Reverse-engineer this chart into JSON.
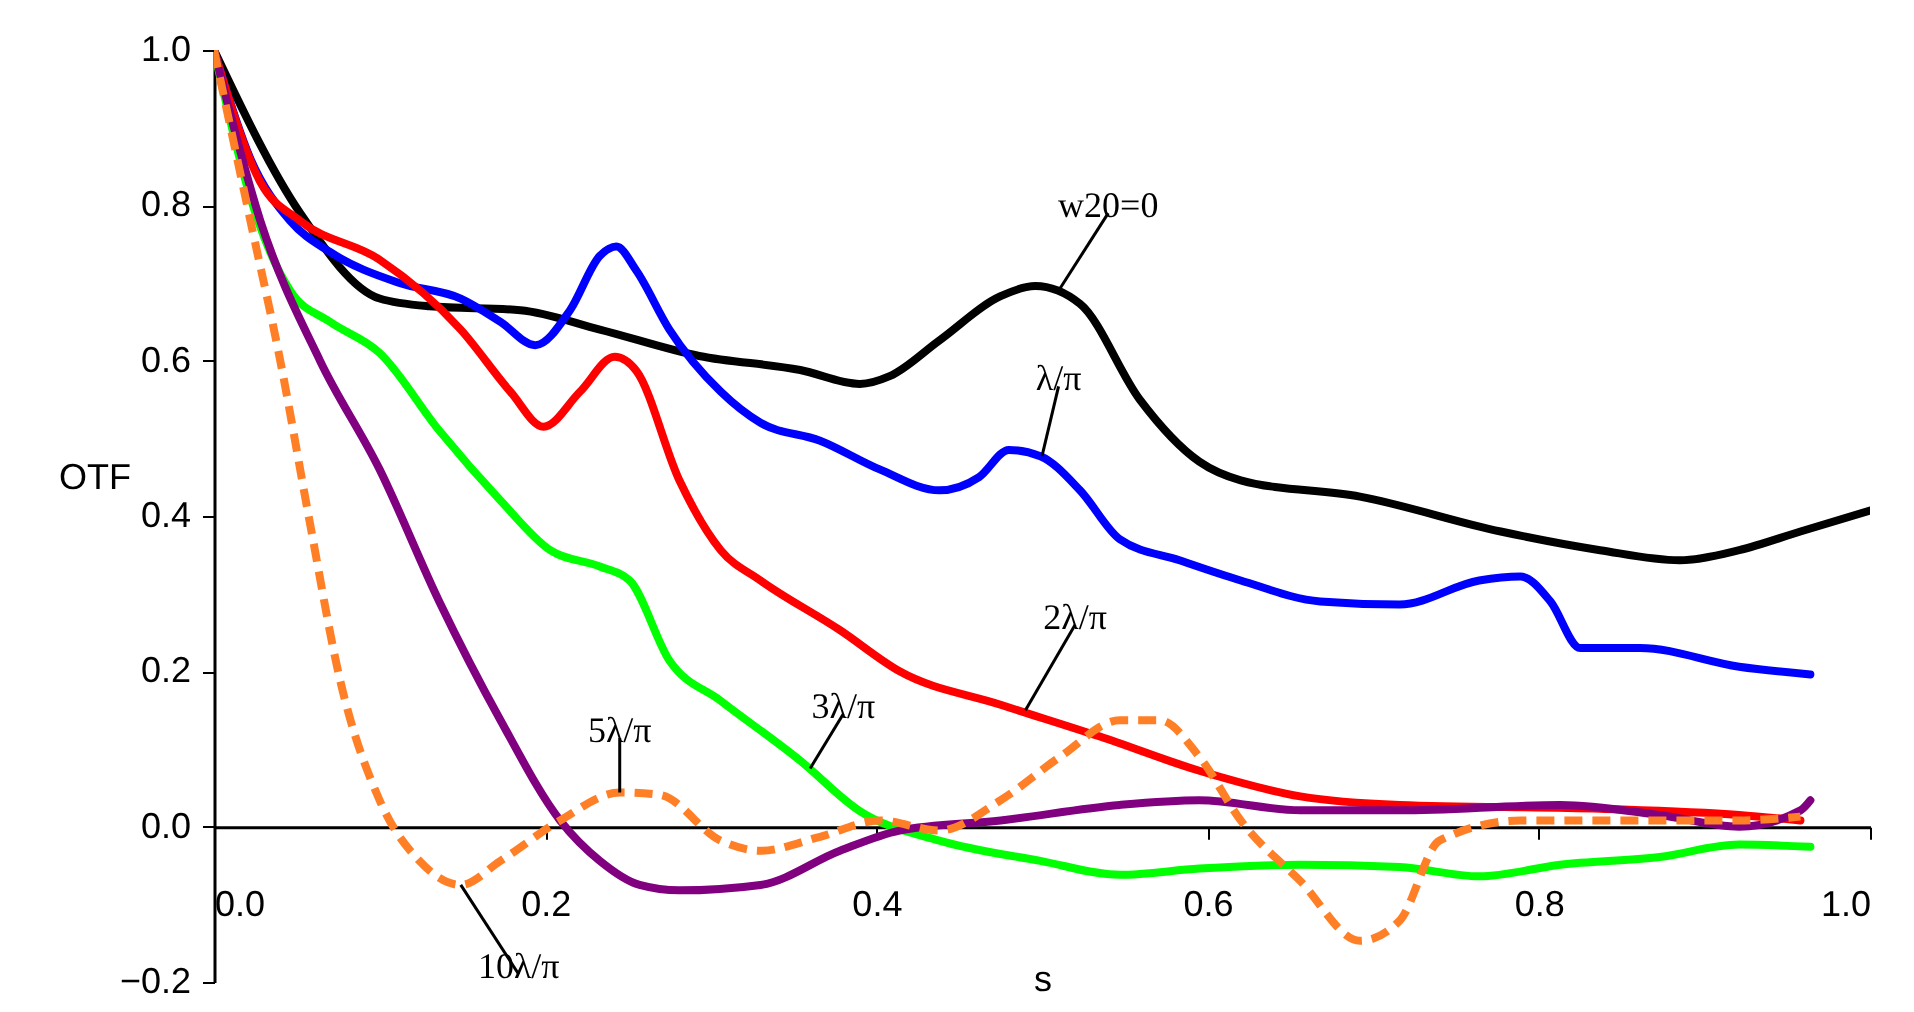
{
  "chart_data": {
    "type": "line",
    "xlabel": "s",
    "ylabel": "OTF",
    "xlim": [
      0,
      1
    ],
    "ylim": [
      -0.2,
      1
    ],
    "xticks": [
      {
        "value": 0,
        "label": "0.0"
      },
      0.2,
      0.4,
      0.6,
      0.8,
      {
        "value": 1,
        "label": "1.0"
      }
    ],
    "yticks": [
      -0.2,
      {
        "value": 0,
        "label": "0.0"
      },
      0.2,
      0.4,
      0.6,
      0.8,
      {
        "value": 1,
        "label": "1.0"
      }
    ],
    "grid": false,
    "marker": "none",
    "line_style": "solid",
    "series": [
      {
        "color": "#000000",
        "x": [
          0,
          0.052,
          0.1,
          0.13,
          0.185,
          0.233,
          0.293,
          0.354,
          0.39,
          0.408,
          0.438,
          0.475,
          0.496,
          0.523,
          0.559,
          0.595,
          0.62,
          0.692,
          0.777,
          0.837,
          0.885,
          0.921,
          0.958,
          1
        ],
        "values": [
          1,
          0.79,
          0.68,
          0.67,
          0.665,
          0.64,
          0.606,
          0.588,
          0.57,
          0.58,
          0.626,
          0.683,
          0.696,
          0.673,
          0.55,
          0.47,
          0.446,
          0.425,
          0.38,
          0.356,
          0.343,
          0.356,
          0.38,
          0.407
        ]
      },
      {
        "color": "#0000ff",
        "x": [
          0,
          0.022,
          0.046,
          0.07,
          0.112,
          0.149,
          0.173,
          0.194,
          0.215,
          0.233,
          0.243,
          0.255,
          0.275,
          0.306,
          0.33,
          0.366,
          0.402,
          0.438,
          0.462,
          0.48,
          0.499,
          0.523,
          0.547,
          0.583,
          0.62,
          0.668,
          0.716,
          0.764,
          0.789,
          0.807,
          0.825,
          0.861,
          0.921,
          0.964
        ],
        "values": [
          1,
          0.86,
          0.78,
          0.74,
          0.7,
          0.68,
          0.65,
          0.62,
          0.665,
          0.735,
          0.747,
          0.716,
          0.64,
          0.56,
          0.52,
          0.497,
          0.46,
          0.433,
          0.45,
          0.485,
          0.477,
          0.433,
          0.37,
          0.343,
          0.317,
          0.29,
          0.286,
          0.317,
          0.322,
          0.29,
          0.23,
          0.23,
          0.206,
          0.196
        ]
      },
      {
        "color": "#ff0000",
        "x": [
          0,
          0.028,
          0.052,
          0.1,
          0.149,
          0.179,
          0.199,
          0.221,
          0.242,
          0.255,
          0.281,
          0.306,
          0.33,
          0.378,
          0.414,
          0.475,
          0.535,
          0.595,
          0.656,
          0.716,
          0.837,
          0.921,
          0.958
        ],
        "values": [
          1,
          0.83,
          0.78,
          0.73,
          0.64,
          0.56,
          0.515,
          0.56,
          0.605,
          0.587,
          0.446,
          0.356,
          0.317,
          0.253,
          0.2,
          0.157,
          0.116,
          0.072,
          0.039,
          0.028,
          0.023,
          0.015,
          0.008
        ]
      },
      {
        "color": "#00ff00",
        "x": [
          0,
          0.022,
          0.046,
          0.07,
          0.1,
          0.136,
          0.173,
          0.203,
          0.233,
          0.251,
          0.275,
          0.306,
          0.354,
          0.39,
          0.438,
          0.499,
          0.547,
          0.595,
          0.656,
          0.716,
          0.764,
          0.813,
          0.873,
          0.921,
          0.964
        ],
        "values": [
          1,
          0.81,
          0.69,
          0.65,
          0.61,
          0.51,
          0.42,
          0.356,
          0.335,
          0.317,
          0.214,
          0.162,
          0.085,
          0.02,
          -0.018,
          -0.044,
          -0.062,
          -0.054,
          -0.049,
          -0.052,
          -0.064,
          -0.049,
          -0.039,
          -0.023,
          -0.026
        ]
      },
      {
        "color": "#800080",
        "x": [
          0,
          0.028,
          0.064,
          0.1,
          0.136,
          0.173,
          0.209,
          0.233,
          0.257,
          0.281,
          0.33,
          0.378,
          0.414,
          0.475,
          0.547,
          0.595,
          0.656,
          0.716,
          0.813,
          0.873,
          0.921,
          0.958,
          0.964
        ],
        "values": [
          1,
          0.78,
          0.6,
          0.46,
          0.29,
          0.137,
          0.008,
          -0.044,
          -0.075,
          -0.082,
          -0.075,
          -0.031,
          -0.005,
          0.008,
          0.028,
          0.034,
          0.021,
          0.021,
          0.028,
          0.015,
          0,
          0.021,
          0.034
        ]
      },
      {
        "color": "#ff7f27",
        "line_style": "dashed",
        "x": [
          0,
          0.022,
          0.04,
          0.058,
          0.076,
          0.1,
          0.124,
          0.149,
          0.173,
          0.209,
          0.245,
          0.269,
          0.306,
          0.33,
          0.366,
          0.402,
          0.438,
          0.475,
          0.511,
          0.547,
          0.571,
          0.595,
          0.62,
          0.656,
          0.692,
          0.716,
          0.74,
          0.789,
          0.861,
          0.921,
          0.958
        ],
        "values": [
          1,
          0.78,
          0.6,
          0.39,
          0.19,
          0.034,
          -0.044,
          -0.075,
          -0.044,
          0.008,
          0.044,
          0.041,
          -0.018,
          -0.031,
          -0.013,
          0.008,
          -0.005,
          0.034,
          0.09,
          0.137,
          0.137,
          0.09,
          0.008,
          -0.07,
          -0.147,
          -0.121,
          -0.018,
          0.008,
          0.008,
          0.008,
          0.013
        ]
      }
    ],
    "annotations": [
      {
        "text": "w20=0",
        "x": 0.51,
        "y": 0.69
      },
      {
        "text": "λ/π",
        "x": 0.5,
        "y": 0.477
      },
      {
        "text": "2λ/π",
        "x": 0.49,
        "y": 0.15
      },
      {
        "text": "3λ/π",
        "x": 0.36,
        "y": 0.075
      },
      {
        "text": "5λ/π",
        "x": 0.245,
        "y": 0.044
      },
      {
        "text": "10λ/π",
        "x": 0.149,
        "y": -0.075
      }
    ]
  }
}
